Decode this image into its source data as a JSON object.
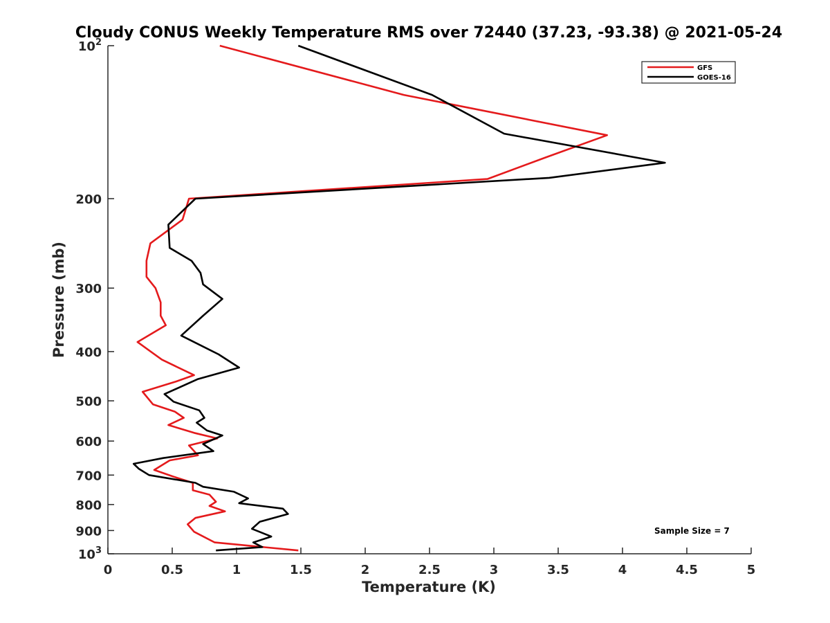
{
  "chart_data": {
    "type": "line",
    "title": "Cloudy CONUS Weekly Temperature RMS over 72440 (37.23, -93.38) @ 2021-05-24",
    "xlabel": "Temperature (K)",
    "ylabel": "Pressure (mb)",
    "xlim": [
      0,
      5
    ],
    "ylim": [
      100,
      1000
    ],
    "yscale": "log",
    "yreversed": true,
    "grid": false,
    "legend_position": "top-right",
    "x_ticks": [
      {
        "value": 0,
        "label": "0"
      },
      {
        "value": 0.5,
        "label": "0.5"
      },
      {
        "value": 1,
        "label": "1"
      },
      {
        "value": 1.5,
        "label": "1.5"
      },
      {
        "value": 2,
        "label": "2"
      },
      {
        "value": 2.5,
        "label": "2.5"
      },
      {
        "value": 3,
        "label": "3"
      },
      {
        "value": 3.5,
        "label": "3.5"
      },
      {
        "value": 4,
        "label": "4"
      },
      {
        "value": 4.5,
        "label": "4.5"
      },
      {
        "value": 5,
        "label": "5"
      }
    ],
    "y_ticks": [
      {
        "value": 100,
        "base": "10",
        "exp": "2"
      },
      {
        "value": 200,
        "label": "200"
      },
      {
        "value": 300,
        "label": "300"
      },
      {
        "value": 400,
        "label": "400"
      },
      {
        "value": 500,
        "label": "500"
      },
      {
        "value": 600,
        "label": "600"
      },
      {
        "value": 700,
        "label": "700"
      },
      {
        "value": 800,
        "label": "800"
      },
      {
        "value": 900,
        "label": "900"
      },
      {
        "value": 1000,
        "base": "10",
        "exp": "3"
      }
    ],
    "annotation": "Sample Size = 7",
    "series": [
      {
        "name": "GFS",
        "color": "#e41a1c",
        "points": [
          [
            0.87,
            100
          ],
          [
            2.3,
            125
          ],
          [
            3.88,
            150
          ],
          [
            3.4,
            166
          ],
          [
            2.95,
            183
          ],
          [
            0.63,
            200
          ],
          [
            0.58,
            220
          ],
          [
            0.33,
            245
          ],
          [
            0.3,
            265
          ],
          [
            0.3,
            285
          ],
          [
            0.37,
            300
          ],
          [
            0.41,
            320
          ],
          [
            0.41,
            340
          ],
          [
            0.45,
            355
          ],
          [
            0.23,
            383
          ],
          [
            0.42,
            415
          ],
          [
            0.67,
            445
          ],
          [
            0.53,
            458
          ],
          [
            0.27,
            480
          ],
          [
            0.35,
            508
          ],
          [
            0.52,
            525
          ],
          [
            0.59,
            540
          ],
          [
            0.47,
            558
          ],
          [
            0.67,
            578
          ],
          [
            0.85,
            593
          ],
          [
            0.63,
            612
          ],
          [
            0.7,
            640
          ],
          [
            0.48,
            655
          ],
          [
            0.36,
            684
          ],
          [
            0.51,
            705
          ],
          [
            0.66,
            725
          ],
          [
            0.66,
            750
          ],
          [
            0.79,
            765
          ],
          [
            0.84,
            790
          ],
          [
            0.79,
            805
          ],
          [
            0.91,
            825
          ],
          [
            0.68,
            850
          ],
          [
            0.62,
            875
          ],
          [
            0.67,
            905
          ],
          [
            0.83,
            950
          ],
          [
            1.48,
            985
          ]
        ]
      },
      {
        "name": "GOES-16",
        "color": "#000000",
        "points": [
          [
            1.48,
            100
          ],
          [
            2.52,
            125
          ],
          [
            3.08,
            149
          ],
          [
            4.33,
            170
          ],
          [
            3.43,
            182
          ],
          [
            0.68,
            200
          ],
          [
            0.47,
            225
          ],
          [
            0.48,
            250
          ],
          [
            0.65,
            265
          ],
          [
            0.72,
            280
          ],
          [
            0.74,
            295
          ],
          [
            0.89,
            315
          ],
          [
            0.74,
            340
          ],
          [
            0.57,
            372
          ],
          [
            0.86,
            405
          ],
          [
            1.02,
            430
          ],
          [
            0.7,
            453
          ],
          [
            0.44,
            485
          ],
          [
            0.51,
            502
          ],
          [
            0.71,
            522
          ],
          [
            0.75,
            540
          ],
          [
            0.69,
            552
          ],
          [
            0.77,
            572
          ],
          [
            0.89,
            585
          ],
          [
            0.74,
            608
          ],
          [
            0.82,
            628
          ],
          [
            0.43,
            648
          ],
          [
            0.2,
            665
          ],
          [
            0.24,
            680
          ],
          [
            0.32,
            700
          ],
          [
            0.68,
            725
          ],
          [
            0.74,
            738
          ],
          [
            0.98,
            755
          ],
          [
            1.09,
            778
          ],
          [
            1.02,
            795
          ],
          [
            1.36,
            815
          ],
          [
            1.4,
            835
          ],
          [
            1.18,
            865
          ],
          [
            1.12,
            893
          ],
          [
            1.27,
            925
          ],
          [
            1.13,
            950
          ],
          [
            1.2,
            970
          ],
          [
            0.84,
            985
          ]
        ]
      }
    ]
  }
}
